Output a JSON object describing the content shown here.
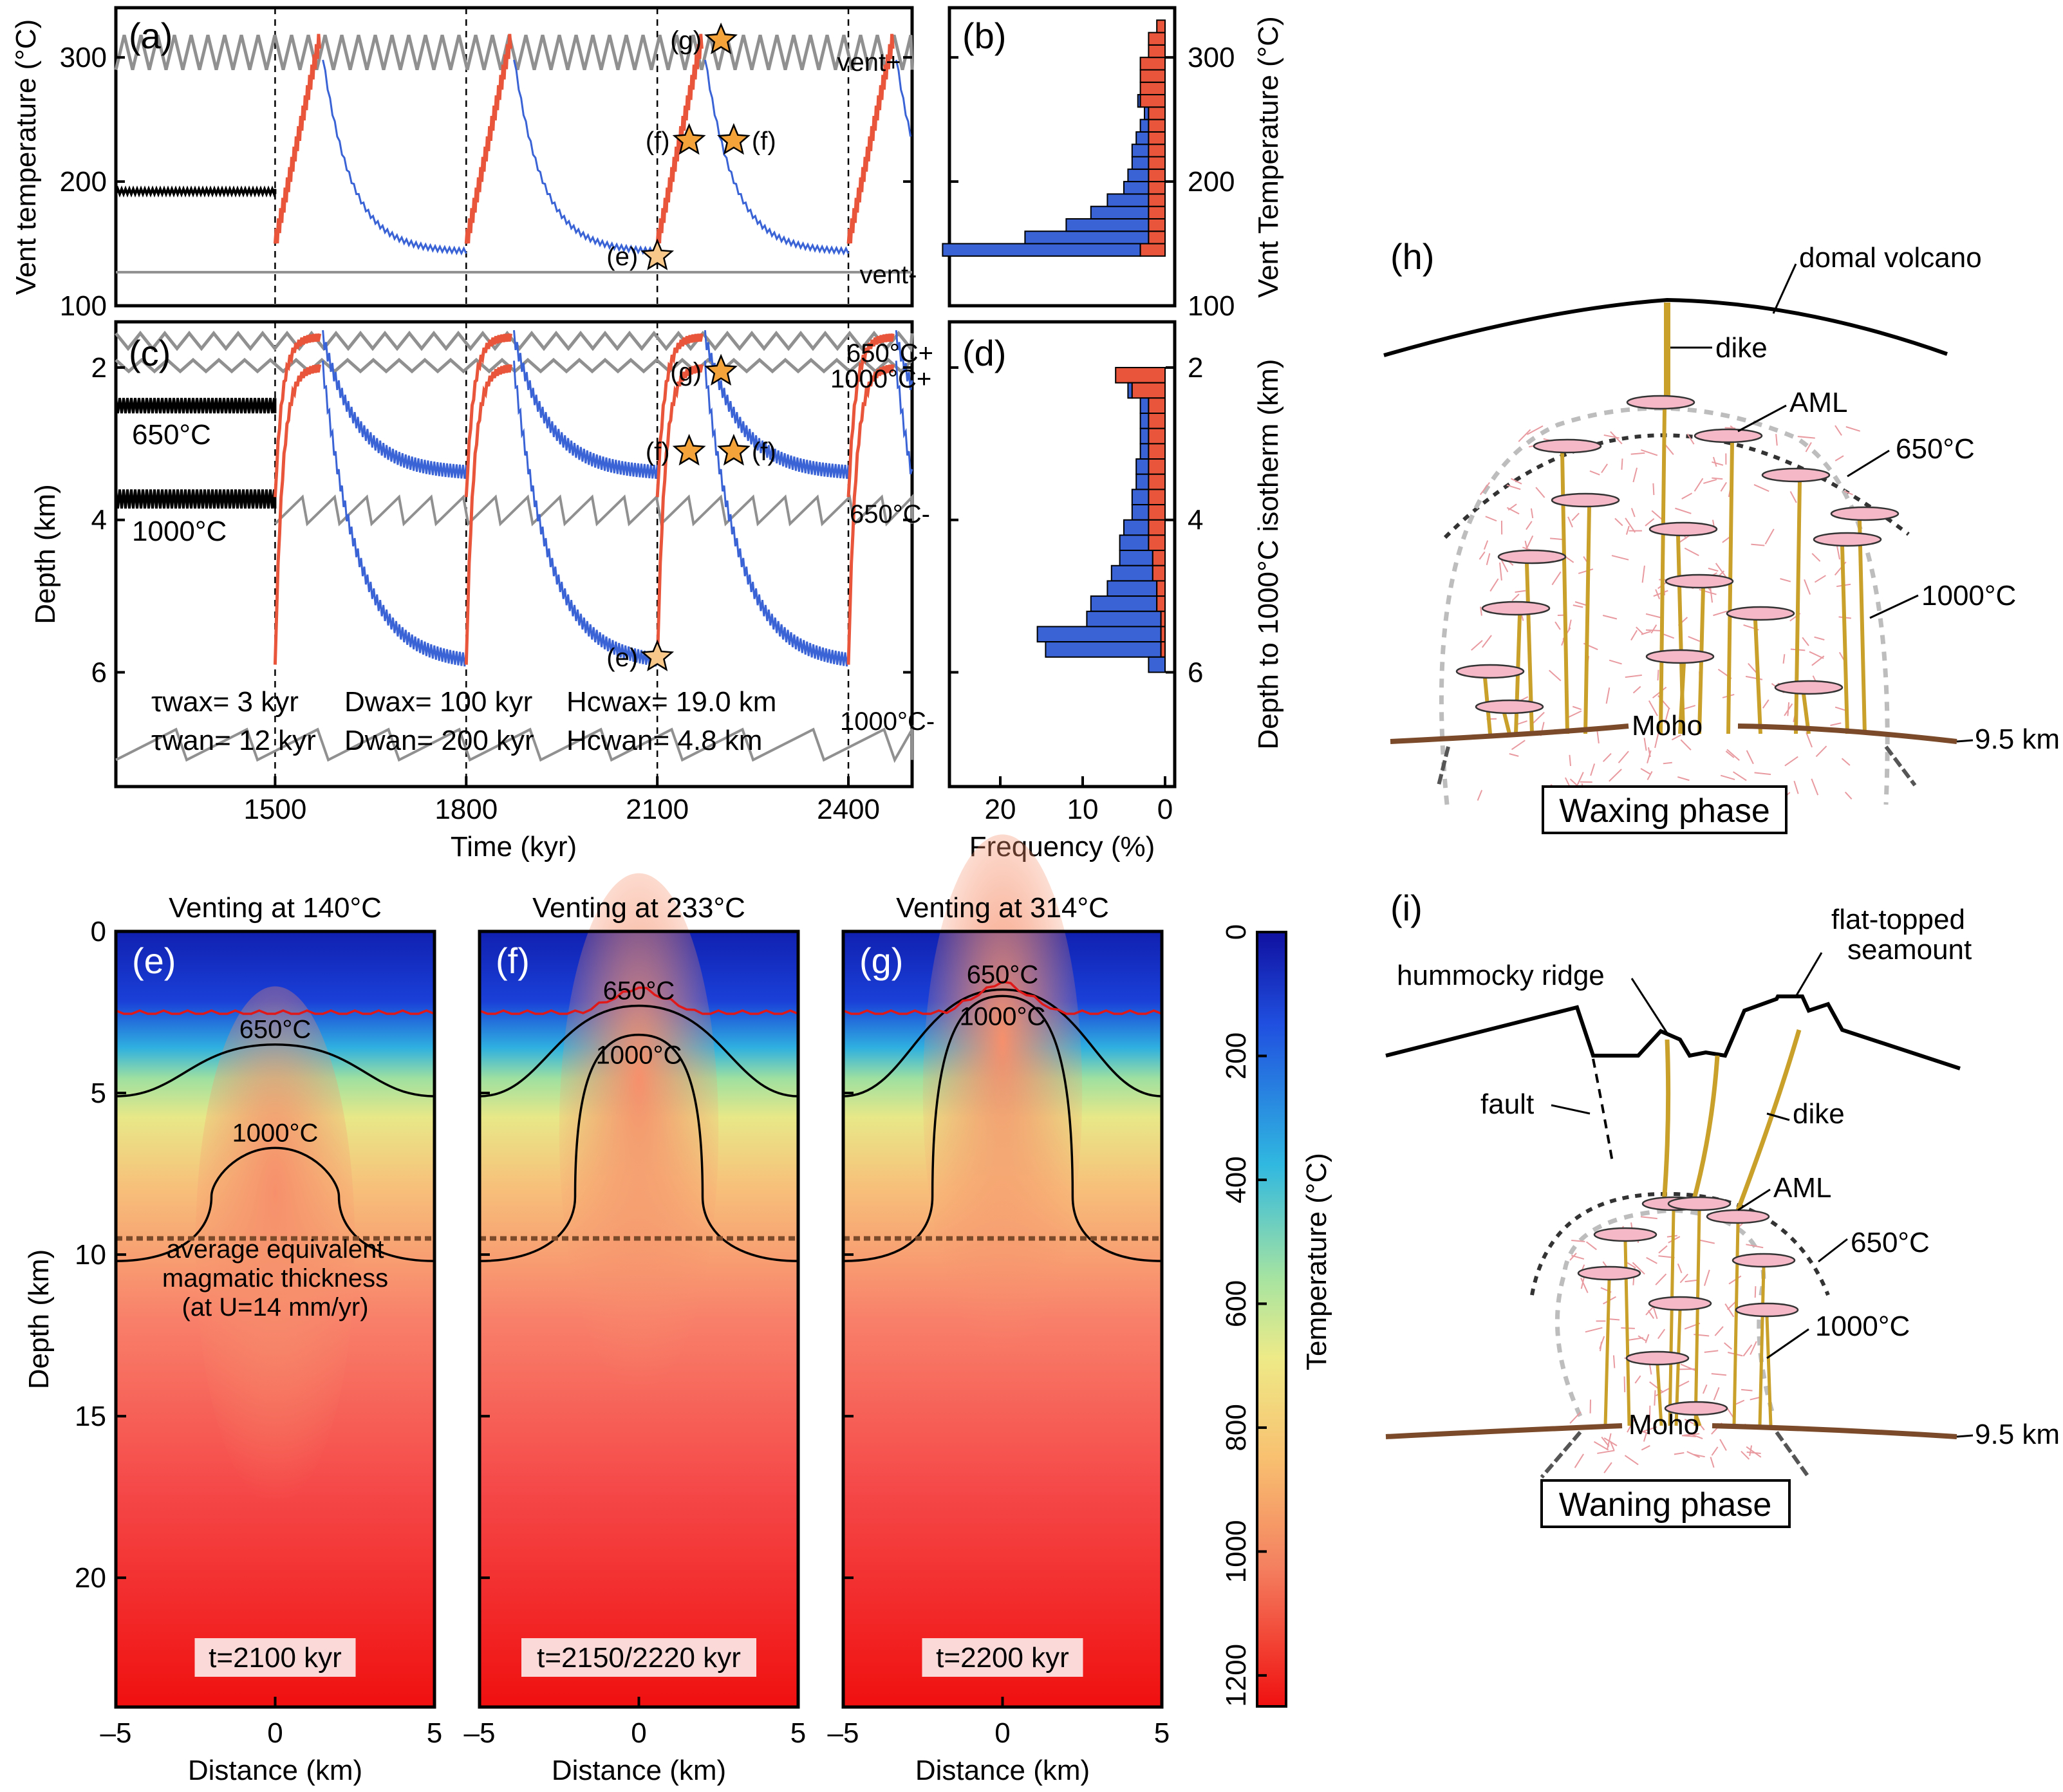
{
  "colors": {
    "waxing": "#e8553a",
    "waning": "#3a63d6",
    "background_series": "#909090",
    "star": "#f3a33a",
    "aml_lens": "#f4b8c6",
    "dike": "#c8a02a",
    "moho": "#7a4a2a"
  },
  "panel_a": {
    "label": "(a)",
    "ylabel": "Vent temperature (°C)",
    "yticks": [
      "100",
      "200",
      "300"
    ],
    "series_labels": {
      "upper": "vent+",
      "lower": "vent-"
    },
    "markers": [
      "(e)",
      "(f)",
      "(f)",
      "(g)"
    ]
  },
  "panel_b": {
    "label": "(b)",
    "ylabel": "Vent Temperature (°C)",
    "yticks": [
      "100",
      "200",
      "300"
    ]
  },
  "panel_c": {
    "label": "(c)",
    "ylabel": "Depth (km)",
    "xlabel": "Time (kyr)",
    "yticks": [
      "2",
      "4",
      "6"
    ],
    "xticks": [
      "1500",
      "1800",
      "2100",
      "2400"
    ],
    "isotherm_labels": {
      "i650": "650°C",
      "i1000": "1000°C"
    },
    "series_labels": {
      "i650_plus": "650°C+",
      "i1000_plus": "1000°C+",
      "i650_minus": "650°C-",
      "i1000_minus": "1000°C-"
    },
    "markers": [
      "(e)",
      "(f)",
      "(f)",
      "(g)"
    ],
    "params": {
      "tau_wax": "τwax= 3 kyr",
      "tau_wan": "τwan= 12 kyr",
      "d_wax": "Dwax= 100 kyr",
      "d_wan": "Dwan= 200 kyr",
      "hc_wax": "Hcwax= 19.0 km",
      "hc_wan": "Hcwan= 4.8 km"
    }
  },
  "panel_d": {
    "label": "(d)",
    "ylabel": "Depth to 1000°C isotherm (km)",
    "xlabel": "Frequency (%)",
    "yticks": [
      "2",
      "4",
      "6"
    ],
    "xticks": [
      "20",
      "10",
      "0"
    ]
  },
  "panel_efg": {
    "titles": [
      "Venting at 140°C",
      "Venting at 233°C",
      "Venting at 314°C"
    ],
    "labels": [
      "(e)",
      "(f)",
      "(g)"
    ],
    "times": [
      "t=2100 kyr",
      "t=2150/2220 kyr",
      "t=2200 kyr"
    ],
    "ylabel": "Depth (km)",
    "xlabel": "Distance (km)",
    "yticks": [
      "0",
      "5",
      "10",
      "15",
      "20"
    ],
    "xticks": [
      "–5",
      "0",
      "5"
    ],
    "contours": [
      "650°C",
      "1000°C"
    ],
    "note": [
      "average equivalent",
      "magmatic thickness",
      "(at U=14 mm/yr)"
    ]
  },
  "colorbar": {
    "label": "Temperature (°C)",
    "ticks": [
      "0",
      "200",
      "400",
      "600",
      "800",
      "1000",
      "1200"
    ]
  },
  "panel_h": {
    "label": "(h)",
    "phase": "Waxing phase",
    "labels": {
      "volcano": "domal volcano",
      "dike": "dike",
      "aml": "AML",
      "i650": "650°C",
      "i1000": "1000°C",
      "moho": "Moho",
      "moho_depth": "9.5 km"
    }
  },
  "panel_i": {
    "label": "(i)",
    "phase": "Waning phase",
    "labels": {
      "ridge": "hummocky ridge",
      "seamount_1": "flat-topped",
      "seamount_2": "seamount",
      "fault": "fault",
      "dike": "dike",
      "aml": "AML",
      "i650": "650°C",
      "i1000": "1000°C",
      "moho": "Moho",
      "moho_depth": "9.5 km"
    }
  },
  "chart_data": [
    {
      "type": "line",
      "panel": "(a)",
      "xlabel": "Time (kyr)",
      "ylabel": "Vent temperature (°C)",
      "xlim": [
        1250,
        2500
      ],
      "ylim": [
        100,
        340
      ],
      "xticks": [
        1500,
        1800,
        2100,
        2400
      ],
      "series": [
        {
          "name": "vent+",
          "x": [
            1250,
            2500
          ],
          "values": [
            300,
            300
          ]
        },
        {
          "name": "vent-",
          "x": [
            1250,
            2500
          ],
          "values": [
            127,
            127
          ]
        },
        {
          "x": [
            1250,
            1500,
            1500,
            1570,
            1600,
            1650,
            1700,
            1750,
            1800,
            1800,
            1870,
            1900,
            1950,
            2000,
            2050,
            2100,
            2100,
            2170,
            2200,
            2250,
            2300,
            2350,
            2400,
            2400,
            2470,
            2500
          ],
          "values": [
            192,
            192,
            160,
            315,
            300,
            205,
            170,
            152,
            143,
            143,
            315,
            300,
            205,
            170,
            152,
            143,
            143,
            315,
            300,
            205,
            170,
            152,
            143,
            143,
            315,
            300
          ]
        }
      ]
    },
    {
      "type": "bar",
      "panel": "(b)",
      "orientation": "horizontal",
      "xlabel": "Frequency (%)",
      "ylabel": "Vent Temperature (°C)",
      "bins": [
        145,
        155,
        165,
        175,
        185,
        195,
        205,
        215,
        225,
        235,
        245,
        255,
        265,
        275,
        285,
        295,
        305,
        315,
        325
      ],
      "series": [
        {
          "values": [
            24,
            15,
            10,
            7,
            5,
            3,
            2.5,
            2,
            2,
            1.5,
            1,
            0.5,
            0.3,
            0,
            0,
            0,
            0,
            0,
            0
          ]
        },
        {
          "values": [
            3,
            2,
            2,
            2,
            2,
            2,
            2,
            2,
            2,
            2,
            2,
            2,
            3,
            3,
            3,
            3,
            2,
            2,
            1
          ]
        }
      ]
    },
    {
      "type": "line",
      "panel": "(c)",
      "xlabel": "Time (kyr)",
      "ylabel": "Depth (km)",
      "xlim": [
        1250,
        2500
      ],
      "ylim": [
        7.5,
        1.4
      ],
      "series": [
        {
          "name": "650°C+",
          "x": [
            1250,
            2500
          ],
          "values": [
            1.6,
            1.6
          ]
        },
        {
          "name": "1000°C+",
          "x": [
            1250,
            2500
          ],
          "values": [
            1.95,
            1.95
          ]
        },
        {
          "name": "650°C-",
          "x": [
            1250,
            2500
          ],
          "values": [
            3.95,
            3.95
          ]
        },
        {
          "name": "1000°C-",
          "x": [
            1250,
            2500
          ],
          "values": [
            7.0,
            7.0
          ]
        }
      ]
    },
    {
      "type": "bar",
      "panel": "(d)",
      "orientation": "horizontal",
      "xlabel": "Frequency (%)",
      "ylabel": "Depth to 1000°C isotherm (km)",
      "bins": [
        2.1,
        2.3,
        2.5,
        2.7,
        2.9,
        3.1,
        3.3,
        3.5,
        3.7,
        3.9,
        4.1,
        4.3,
        4.5,
        4.7,
        4.9,
        5.1,
        5.3,
        5.5,
        5.7,
        5.9
      ],
      "series": [
        {
          "values": [
            0,
            0.5,
            1,
            1,
            1,
            1,
            1.5,
            1.5,
            2,
            2,
            3,
            3.5,
            4,
            5,
            6,
            8,
            9,
            15,
            14,
            2
          ]
        },
        {
          "values": [
            6,
            4,
            2,
            2,
            2,
            2,
            2,
            2,
            2,
            2,
            2,
            2,
            1.5,
            1.5,
            1,
            1,
            0.5,
            0.5,
            0.5,
            0
          ]
        }
      ]
    },
    {
      "type": "heatmap",
      "panel": "(e)-(g)",
      "xlabel": "Distance (km)",
      "ylabel": "Depth (km)",
      "xlim": [
        -5,
        5
      ],
      "ylim": [
        24,
        0
      ],
      "colorbar_range": [
        0,
        1250
      ]
    }
  ]
}
